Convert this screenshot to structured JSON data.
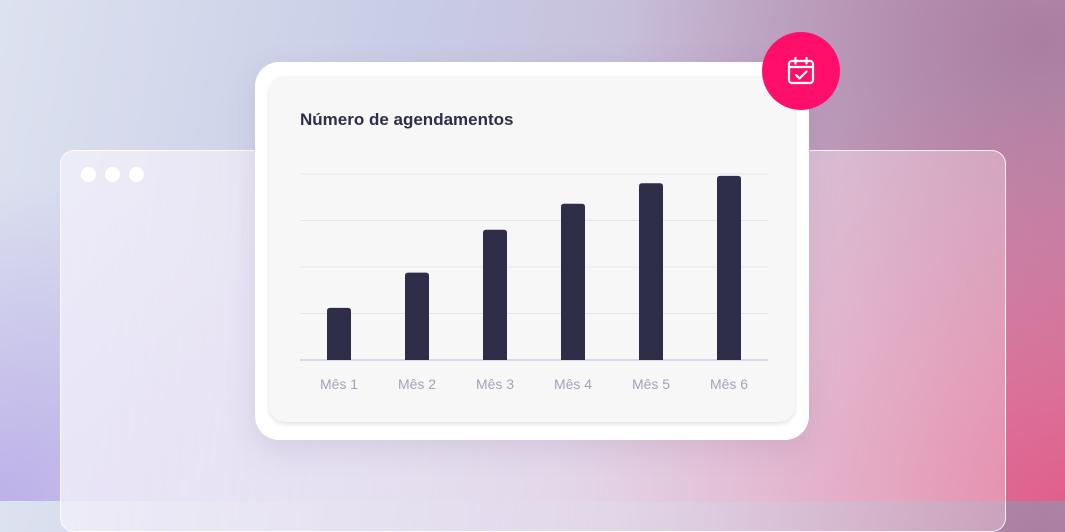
{
  "chart_data": {
    "type": "bar",
    "title": "Número de agendamentos",
    "categories": [
      "Mês 1",
      "Mês 2",
      "Mês 3",
      "Mês 4",
      "Mês 5",
      "Mês 6"
    ],
    "values": [
      28,
      47,
      70,
      84,
      95,
      99
    ],
    "ylim": [
      0,
      100
    ],
    "xlabel": "",
    "ylabel": "",
    "grid": true,
    "bar_color": "#2e2e48"
  },
  "window": {
    "controls": [
      "dot",
      "dot",
      "dot"
    ]
  },
  "badge": {
    "icon": "calendar-check-icon",
    "color": "#ff0f6a"
  }
}
